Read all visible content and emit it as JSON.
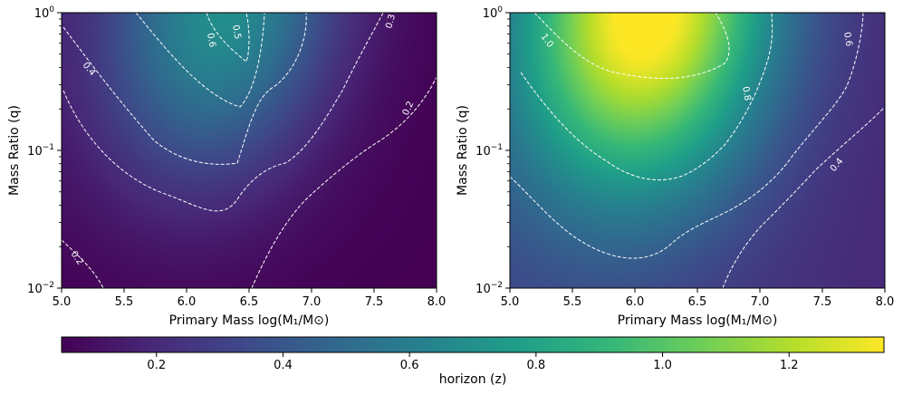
{
  "chart_data": [
    {
      "type": "heatmap",
      "xlabel": "Primary Mass log(M₁/M⊙)",
      "ylabel": "Mass Ratio (q)",
      "x_range": [
        5.0,
        8.0
      ],
      "y_range": [
        0.01,
        1.0
      ],
      "y_scale": "log",
      "x_ticks": [
        "5.0",
        "5.5",
        "6.0",
        "6.5",
        "7.0",
        "7.5",
        "8.0"
      ],
      "y_ticks": [
        {
          "base": "10",
          "exp": "−2",
          "value": 0.01
        },
        {
          "base": "10",
          "exp": "−1",
          "value": 0.1
        },
        {
          "base": "10",
          "exp": "0",
          "value": 1.0
        }
      ],
      "contour_levels": [
        0.2,
        0.3,
        0.4,
        0.5,
        0.6
      ],
      "contour_labels": [
        "0.2",
        "0.2",
        "0.3",
        "0.4",
        "0.5",
        "0.6"
      ],
      "values_description": "peak ~0.65 near x=6.3, q=1; minimum ~0.05 near x=8, q=0.01"
    },
    {
      "type": "heatmap",
      "xlabel": "Primary Mass log(M₁/M⊙)",
      "ylabel": "Mass Ratio (q)",
      "x_range": [
        5.0,
        8.0
      ],
      "y_range": [
        0.01,
        1.0
      ],
      "y_scale": "log",
      "x_ticks": [
        "5.0",
        "5.5",
        "6.0",
        "6.5",
        "7.0",
        "7.5",
        "8.0"
      ],
      "y_ticks": [
        {
          "base": "10",
          "exp": "−2",
          "value": 0.01
        },
        {
          "base": "10",
          "exp": "−1",
          "value": 0.1
        },
        {
          "base": "10",
          "exp": "0",
          "value": 1.0
        }
      ],
      "contour_levels": [
        0.4,
        0.6,
        0.8,
        1.0
      ],
      "contour_labels": [
        "0.4",
        "0.6",
        "0.8",
        "1.0"
      ],
      "values_description": "peak ~1.35 near x=6.1, q=1; minimum ~0.2 near x=8, q=0.01"
    }
  ],
  "colorbar": {
    "label": "horizon (z)",
    "range": [
      0.05,
      1.35
    ],
    "colormap": "viridis",
    "ticks": [
      "0.2",
      "0.4",
      "0.6",
      "0.8",
      "1.0",
      "1.2"
    ]
  },
  "colors": {
    "contour": "#ffffff",
    "viridis": [
      "#440154",
      "#482878",
      "#3e4989",
      "#31688e",
      "#26828e",
      "#1f9e89",
      "#35b779",
      "#6ece58",
      "#b5de2b",
      "#fde725"
    ]
  }
}
